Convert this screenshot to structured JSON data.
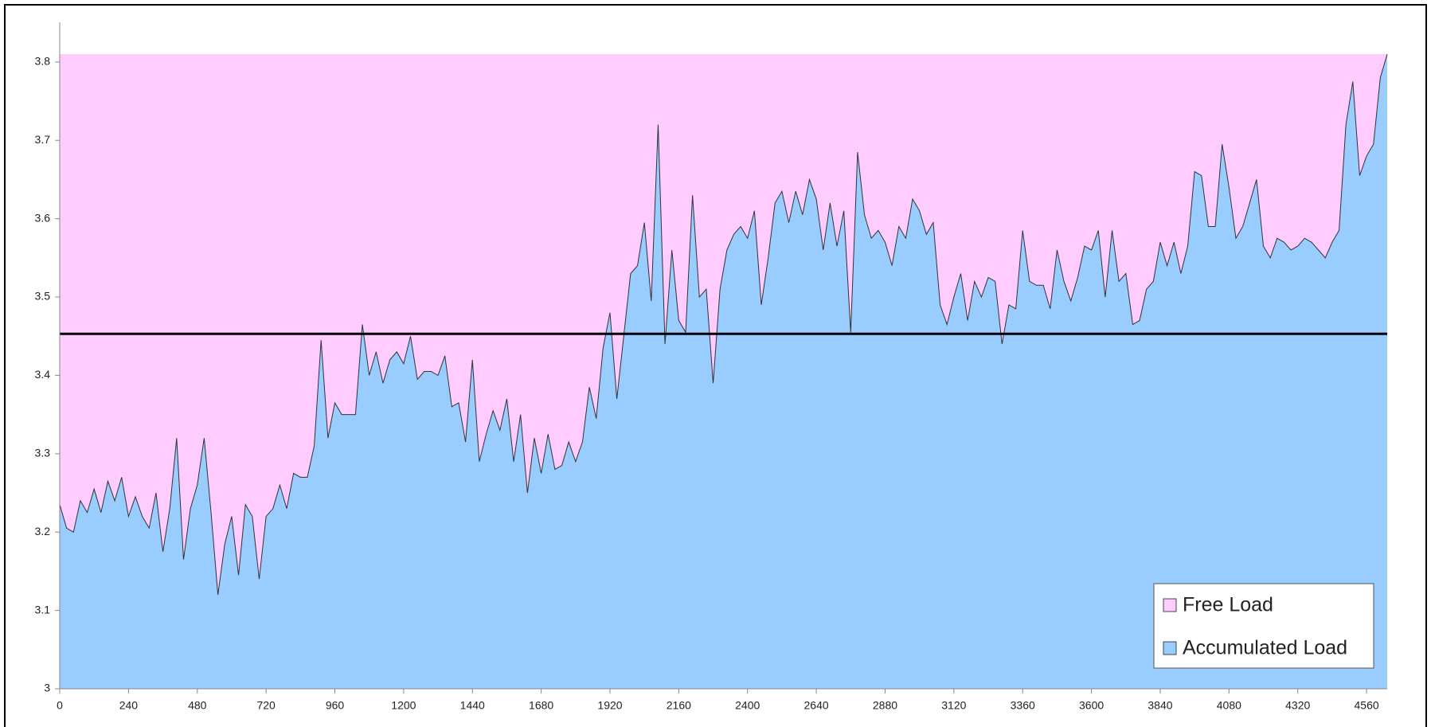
{
  "chart_data": {
    "type": "area",
    "x": [
      0,
      24,
      48,
      72,
      96,
      120,
      144,
      168,
      192,
      216,
      240,
      264,
      288,
      312,
      336,
      360,
      384,
      408,
      432,
      456,
      480,
      504,
      528,
      552,
      576,
      600,
      624,
      648,
      672,
      696,
      720,
      744,
      768,
      792,
      816,
      840,
      864,
      888,
      912,
      936,
      960,
      984,
      1008,
      1032,
      1056,
      1080,
      1104,
      1128,
      1152,
      1176,
      1200,
      1224,
      1248,
      1272,
      1296,
      1320,
      1344,
      1368,
      1392,
      1416,
      1440,
      1464,
      1488,
      1512,
      1536,
      1560,
      1584,
      1608,
      1632,
      1656,
      1680,
      1704,
      1728,
      1752,
      1776,
      1800,
      1824,
      1848,
      1872,
      1896,
      1920,
      1944,
      1968,
      1992,
      2016,
      2040,
      2064,
      2088,
      2112,
      2136,
      2160,
      2184,
      2208,
      2232,
      2256,
      2280,
      2304,
      2328,
      2352,
      2376,
      2400,
      2424,
      2448,
      2472,
      2496,
      2520,
      2544,
      2568,
      2592,
      2616,
      2640,
      2664,
      2688,
      2712,
      2736,
      2760,
      2784,
      2808,
      2832,
      2856,
      2880,
      2904,
      2928,
      2952,
      2976,
      3000,
      3024,
      3048,
      3072,
      3096,
      3120,
      3144,
      3168,
      3192,
      3216,
      3240,
      3264,
      3288,
      3312,
      3336,
      3360,
      3384,
      3408,
      3432,
      3456,
      3480,
      3504,
      3528,
      3552,
      3576,
      3600,
      3624,
      3648,
      3672,
      3696,
      3720,
      3744,
      3768,
      3792,
      3816,
      3840,
      3864,
      3888,
      3912,
      3936,
      3960,
      3984,
      4008,
      4032,
      4056,
      4080,
      4104,
      4128,
      4152,
      4176,
      4200,
      4224,
      4248,
      4272,
      4296,
      4320,
      4344,
      4368,
      4392,
      4416,
      4440,
      4464,
      4488,
      4512,
      4536,
      4560,
      4584,
      4608,
      4632
    ],
    "series": [
      {
        "name": "Free Load",
        "color": "#ffccff"
      },
      {
        "name": "Accumulated Load",
        "color": "#99ccff",
        "values": [
          3.235,
          3.205,
          3.2,
          3.24,
          3.225,
          3.255,
          3.225,
          3.265,
          3.24,
          3.27,
          3.22,
          3.245,
          3.22,
          3.205,
          3.25,
          3.175,
          3.23,
          3.32,
          3.165,
          3.23,
          3.26,
          3.32,
          3.225,
          3.12,
          3.185,
          3.22,
          3.145,
          3.235,
          3.22,
          3.14,
          3.22,
          3.23,
          3.26,
          3.23,
          3.275,
          3.27,
          3.27,
          3.31,
          3.445,
          3.32,
          3.365,
          3.35,
          3.35,
          3.35,
          3.465,
          3.4,
          3.43,
          3.39,
          3.42,
          3.43,
          3.415,
          3.45,
          3.395,
          3.405,
          3.405,
          3.4,
          3.425,
          3.36,
          3.365,
          3.315,
          3.42,
          3.29,
          3.325,
          3.355,
          3.33,
          3.37,
          3.29,
          3.35,
          3.25,
          3.32,
          3.275,
          3.325,
          3.28,
          3.285,
          3.315,
          3.29,
          3.315,
          3.385,
          3.345,
          3.435,
          3.48,
          3.37,
          3.45,
          3.53,
          3.54,
          3.595,
          3.495,
          3.72,
          3.44,
          3.56,
          3.47,
          3.455,
          3.63,
          3.5,
          3.51,
          3.39,
          3.51,
          3.56,
          3.58,
          3.59,
          3.575,
          3.61,
          3.49,
          3.55,
          3.62,
          3.635,
          3.595,
          3.635,
          3.605,
          3.65,
          3.625,
          3.56,
          3.62,
          3.565,
          3.61,
          3.455,
          3.685,
          3.605,
          3.575,
          3.585,
          3.57,
          3.54,
          3.59,
          3.575,
          3.625,
          3.61,
          3.58,
          3.595,
          3.49,
          3.465,
          3.5,
          3.53,
          3.47,
          3.52,
          3.5,
          3.525,
          3.52,
          3.44,
          3.49,
          3.485,
          3.585,
          3.52,
          3.515,
          3.515,
          3.485,
          3.56,
          3.52,
          3.495,
          3.525,
          3.565,
          3.56,
          3.585,
          3.5,
          3.585,
          3.52,
          3.53,
          3.465,
          3.47,
          3.51,
          3.52,
          3.57,
          3.54,
          3.57,
          3.53,
          3.565,
          3.66,
          3.655,
          3.59,
          3.59,
          3.695,
          3.64,
          3.575,
          3.59,
          3.62,
          3.65,
          3.565,
          3.55,
          3.575,
          3.57,
          3.56,
          3.565,
          3.575,
          3.57,
          3.56,
          3.55,
          3.57,
          3.585,
          3.72,
          3.775,
          3.655,
          3.68,
          3.695,
          3.78,
          3.81
        ]
      }
    ],
    "hline": 3.453,
    "hline_color": "#000000",
    "xlim": [
      0,
      4632
    ],
    "ylim": [
      3,
      3.81
    ],
    "xticks": [
      0,
      240,
      480,
      720,
      960,
      1200,
      1440,
      1680,
      1920,
      2160,
      2400,
      2640,
      2880,
      3120,
      3360,
      3600,
      3840,
      4080,
      4320,
      4560
    ],
    "yticks": [
      3,
      3.1,
      3.2,
      3.3,
      3.4,
      3.5,
      3.6,
      3.7,
      3.8
    ],
    "legend": "bottom-right"
  }
}
